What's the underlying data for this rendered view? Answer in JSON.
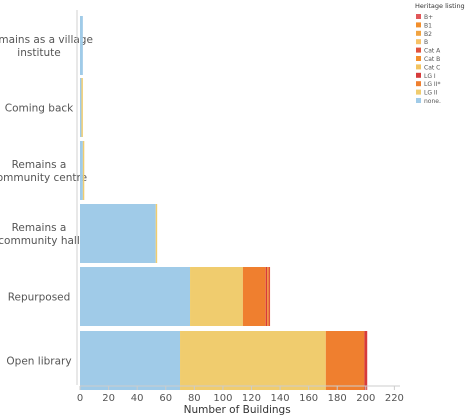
{
  "chart_data": {
    "type": "bar",
    "orientation": "horizontal",
    "stacked": true,
    "categories": [
      [
        "Remains as a village",
        "institute"
      ],
      [
        "Coming back"
      ],
      [
        "Remains a",
        "community centre"
      ],
      [
        "Remains a",
        "community hall"
      ],
      [
        "Repurposed"
      ],
      [
        "Open library"
      ]
    ],
    "xlabel": "Number of Buildings",
    "ylabel": "",
    "xlim": [
      0,
      225
    ],
    "xticks": [
      0,
      20,
      40,
      60,
      80,
      100,
      120,
      140,
      160,
      180,
      200,
      220
    ],
    "grid": false,
    "legend": {
      "title": "Heritage listing",
      "position": "top-right"
    },
    "series": [
      {
        "name": "B+",
        "color": "#e15759",
        "values": [
          0,
          0,
          0,
          0,
          0,
          0
        ]
      },
      {
        "name": "B1",
        "color": "#f28e2b",
        "values": [
          0,
          0,
          0,
          0,
          0,
          0
        ]
      },
      {
        "name": "B2",
        "color": "#f1a340",
        "values": [
          0,
          0,
          0,
          0,
          0,
          0
        ]
      },
      {
        "name": "B",
        "color": "#f7c266",
        "values": [
          0,
          0,
          0,
          0,
          0,
          0
        ]
      },
      {
        "name": "Cat A",
        "color": "#e0513c",
        "values": [
          0,
          0,
          0,
          0,
          1,
          0
        ]
      },
      {
        "name": "Cat B",
        "color": "#f28e2b",
        "values": [
          0,
          0,
          0,
          0,
          1,
          0
        ]
      },
      {
        "name": "Cat C",
        "color": "#f3c45f",
        "values": [
          0,
          0,
          0,
          0,
          0,
          0
        ]
      },
      {
        "name": "LG I",
        "color": "#d63b3b",
        "values": [
          0,
          0,
          0,
          0,
          1,
          2
        ]
      },
      {
        "name": "LG II*",
        "color": "#ef7f2f",
        "values": [
          0,
          0,
          0,
          0,
          16,
          27
        ]
      },
      {
        "name": "LG II",
        "color": "#f0cc6e",
        "values": [
          0,
          1,
          1,
          1,
          37,
          102
        ]
      },
      {
        "name": "none",
        "color": "#a0cbe8",
        "values": [
          2,
          1,
          2,
          53,
          77,
          70
        ]
      }
    ],
    "legend_display": [
      "B+",
      "B1",
      "B2",
      "B",
      "Cat A",
      "Cat B",
      "Cat C",
      "LG I",
      "LG II*",
      "LG II",
      "none."
    ]
  }
}
